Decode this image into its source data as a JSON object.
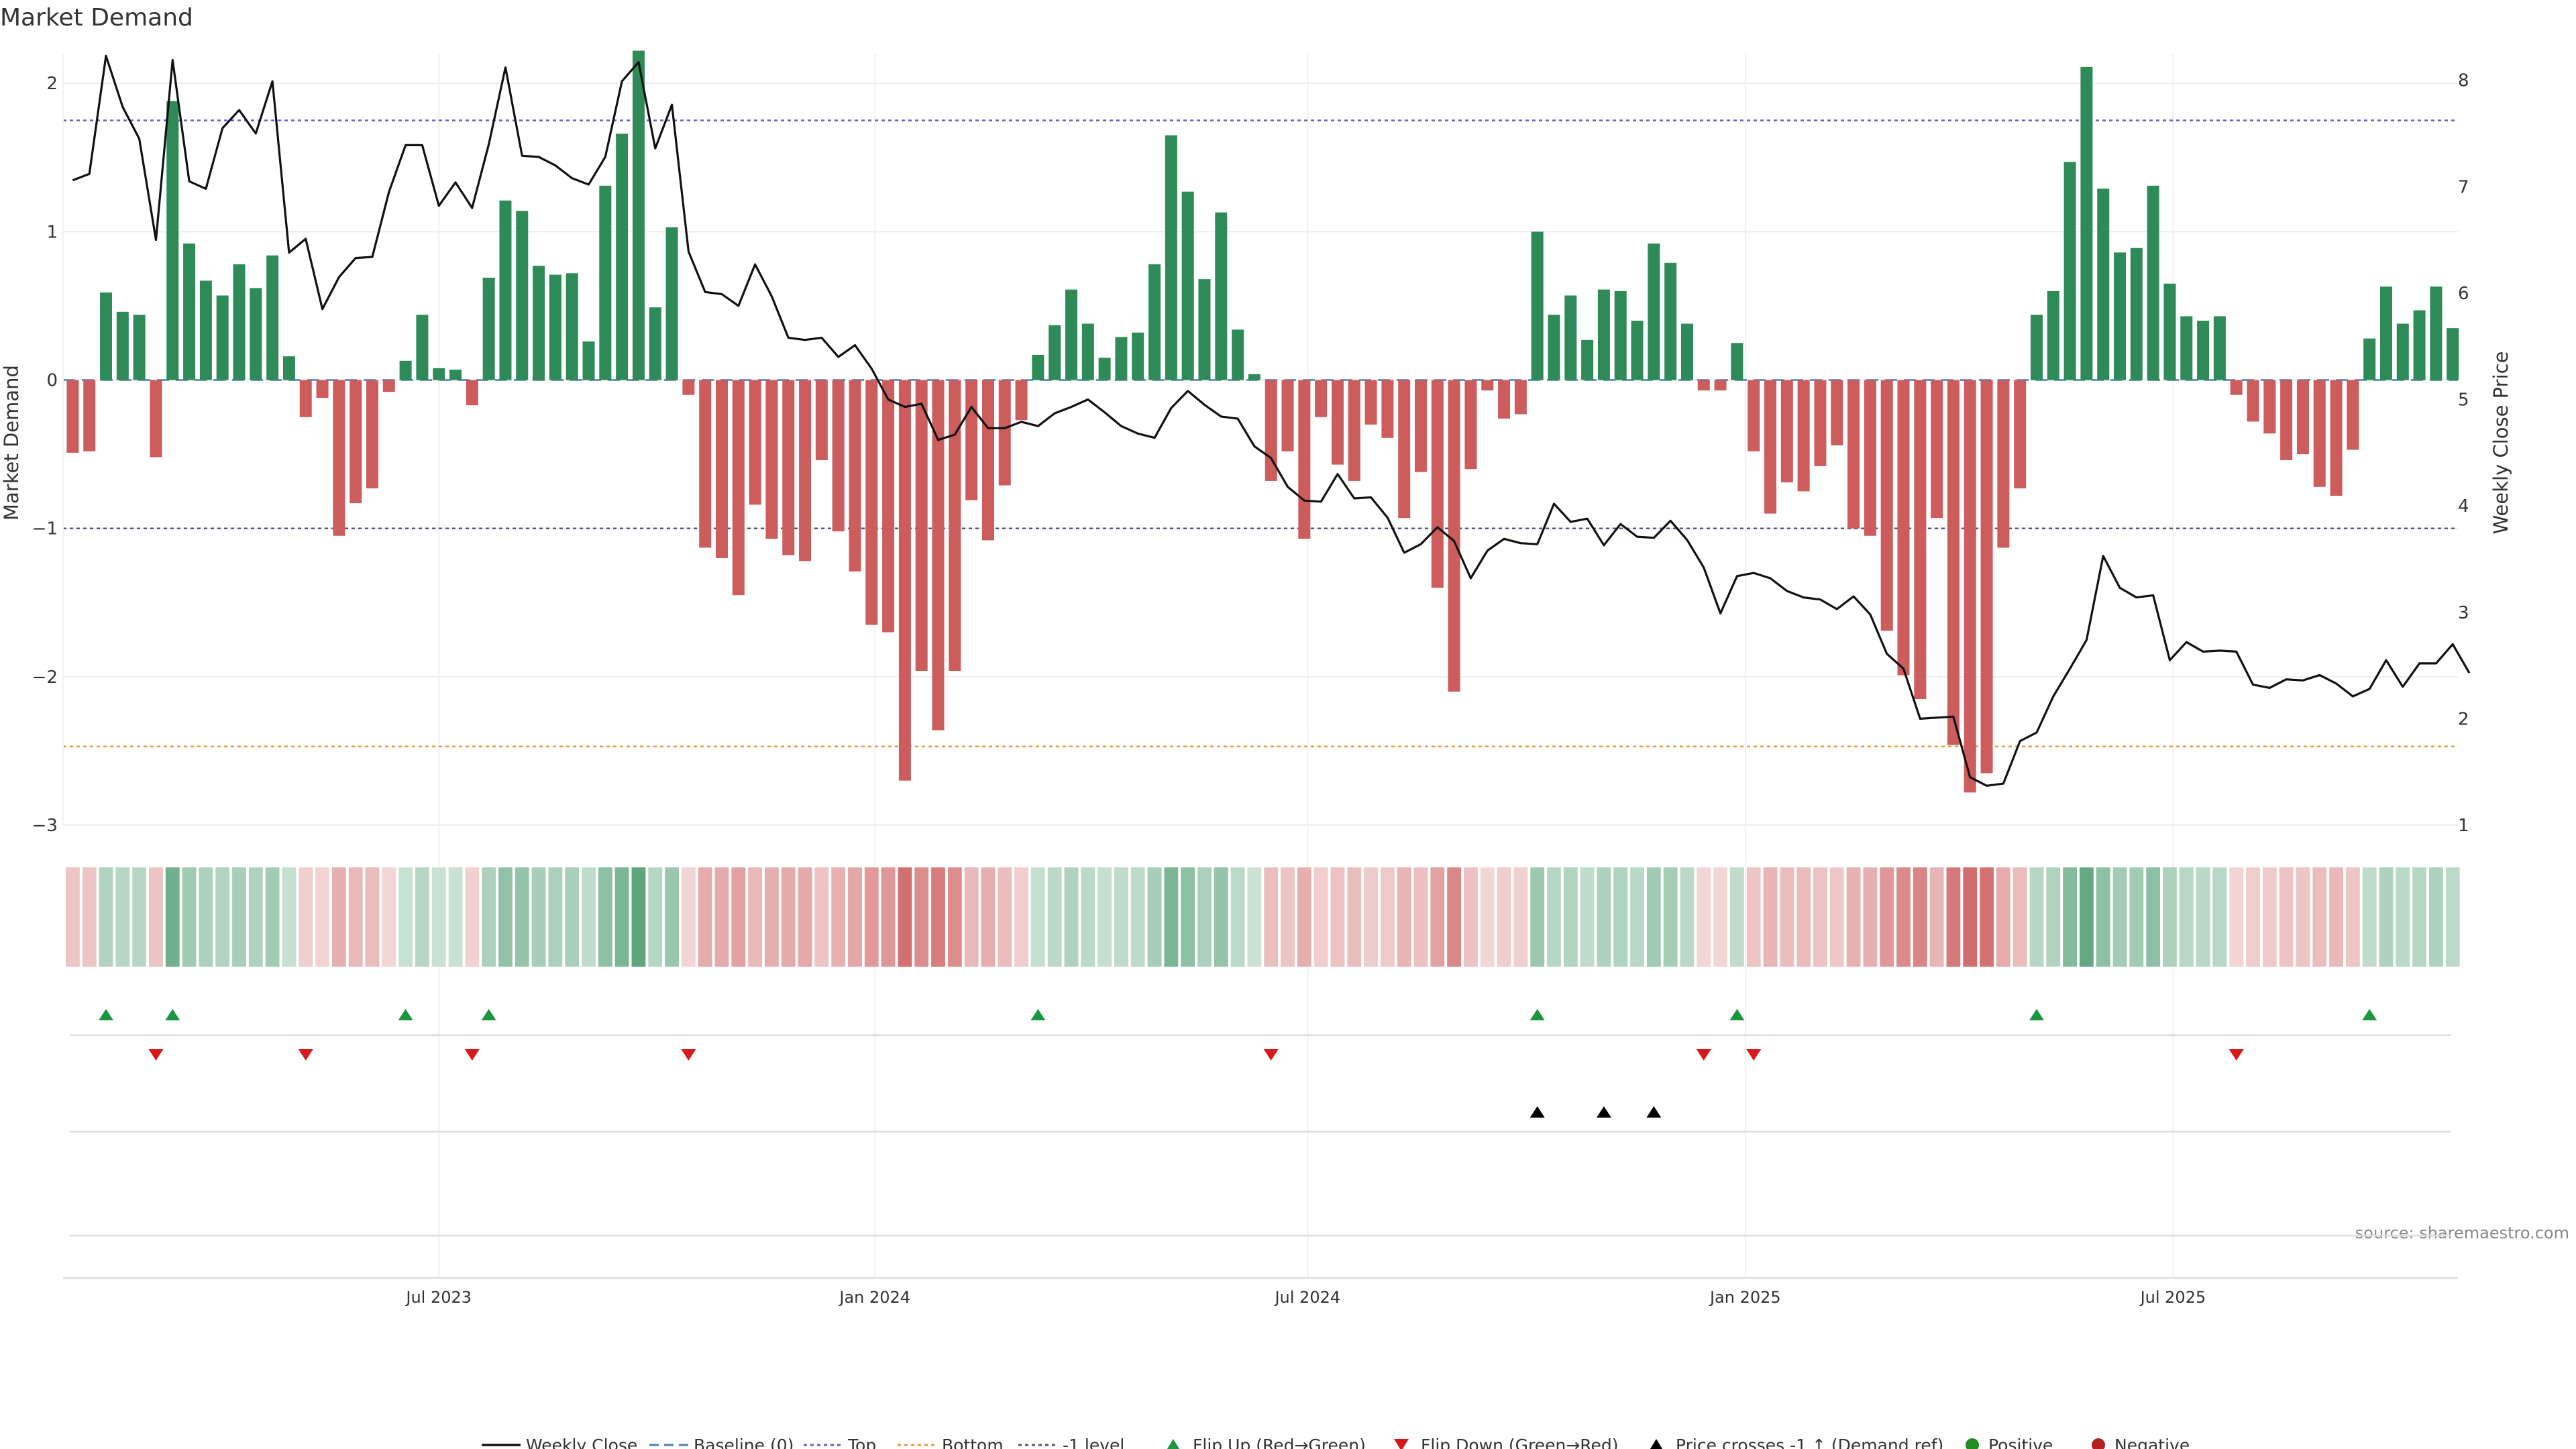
{
  "colors": {
    "positive": "#2e8b57",
    "negative": "#cd5c5c",
    "price_line": "#111111",
    "top_line": "#6a5acd",
    "bottom_line": "#e69a3a",
    "minus1_line": "#555577",
    "flip_up": "#1a9641",
    "flip_down": "#d7191c",
    "cross_marker": "#000000",
    "legend_positive": "#228b22",
    "legend_negative": "#b22222",
    "baseline": "#4a7ebb"
  },
  "chart_data": {
    "type": "bar",
    "title": "Market Demand",
    "source": "source: sharemaestro.com",
    "ylabel_left": "Market Demand",
    "ylabel_right": "Weekly Close Price",
    "ylim_left": [
      -3.0,
      2.2
    ],
    "ylim_right": [
      1.0,
      8.25
    ],
    "yticks_left": [
      {
        "v": 2,
        "label": "2"
      },
      {
        "v": 1,
        "label": "1"
      },
      {
        "v": 0,
        "label": "0"
      },
      {
        "v": -1,
        "label": "−1"
      },
      {
        "v": -2,
        "label": "−2"
      },
      {
        "v": -3,
        "label": "−3"
      }
    ],
    "yticks_right": [
      {
        "v": 8,
        "label": "8"
      },
      {
        "v": 7,
        "label": "7"
      },
      {
        "v": 6,
        "label": "6"
      },
      {
        "v": 5,
        "label": "5"
      },
      {
        "v": 4,
        "label": "4"
      },
      {
        "v": 3,
        "label": "3"
      },
      {
        "v": 2,
        "label": "2"
      },
      {
        "v": 1,
        "label": "1"
      }
    ],
    "xticks": [
      {
        "index": 22,
        "label": "Jul 2023"
      },
      {
        "index": 48.2,
        "label": "Jan 2024"
      },
      {
        "index": 74.2,
        "label": "Jul 2024"
      },
      {
        "index": 100.5,
        "label": "Jan 2025"
      },
      {
        "index": 126.2,
        "label": "Jul 2025"
      }
    ],
    "reference_lines": {
      "top": 1.75,
      "bottom": -2.47,
      "minus1": -1.0
    },
    "demand": [
      -0.49,
      -0.48,
      0.59,
      0.46,
      0.44,
      -0.52,
      1.88,
      0.92,
      0.67,
      0.57,
      0.78,
      0.62,
      0.84,
      0.16,
      -0.25,
      -0.12,
      -1.05,
      -0.83,
      -0.73,
      -0.08,
      0.13,
      0.44,
      0.08,
      0.07,
      -0.17,
      0.69,
      1.21,
      1.14,
      0.77,
      0.71,
      0.72,
      0.26,
      1.31,
      1.66,
      2.22,
      0.49,
      1.03,
      -0.1,
      -1.13,
      -1.2,
      -1.45,
      -0.84,
      -1.07,
      -1.18,
      -1.22,
      -0.54,
      -1.02,
      -1.29,
      -1.65,
      -1.7,
      -2.7,
      -1.96,
      -2.36,
      -1.96,
      -0.81,
      -1.08,
      -0.71,
      -0.27,
      0.17,
      0.37,
      0.61,
      0.38,
      0.15,
      0.29,
      0.32,
      0.78,
      1.65,
      1.27,
      0.68,
      1.13,
      0.34,
      0.04,
      -0.68,
      -0.48,
      -1.07,
      -0.25,
      -0.57,
      -0.68,
      -0.3,
      -0.39,
      -0.93,
      -0.62,
      -1.4,
      -2.1,
      -0.6,
      -0.07,
      -0.26,
      -0.23,
      1.0,
      0.44,
      0.57,
      0.27,
      0.61,
      0.6,
      0.4,
      0.92,
      0.79,
      0.38,
      -0.07,
      -0.07,
      0.25,
      -0.48,
      -0.9,
      -0.69,
      -0.75,
      -0.58,
      -0.44,
      -1.0,
      -1.05,
      -1.69,
      -1.99,
      -2.15,
      -0.93,
      -2.46,
      -2.78,
      -2.65,
      -1.13,
      -0.73,
      0.44,
      0.6,
      1.47,
      2.11,
      1.29,
      0.86,
      0.89,
      1.31,
      0.65,
      0.43,
      0.4,
      0.43,
      -0.1,
      -0.28,
      -0.36,
      -0.54,
      -0.5,
      -0.72,
      -0.78,
      -0.47,
      0.28,
      0.63,
      0.38,
      0.47,
      0.63,
      0.35
    ],
    "price": [
      7.06,
      7.12,
      8.23,
      7.75,
      7.45,
      6.5,
      8.19,
      7.05,
      6.98,
      7.55,
      7.72,
      7.5,
      7.99,
      6.38,
      6.51,
      5.85,
      6.15,
      6.33,
      6.34,
      6.95,
      7.39,
      7.39,
      6.82,
      7.04,
      6.8,
      7.4,
      8.12,
      7.29,
      7.28,
      7.2,
      7.08,
      7.02,
      7.28,
      7.99,
      8.17,
      7.36,
      7.77,
      6.39,
      6.01,
      5.99,
      5.88,
      6.27,
      5.97,
      5.58,
      5.56,
      5.58,
      5.4,
      5.51,
      5.29,
      5.0,
      4.93,
      4.96,
      4.62,
      4.67,
      4.93,
      4.73,
      4.73,
      4.79,
      4.75,
      4.87,
      4.93,
      5.0,
      4.88,
      4.75,
      4.68,
      4.64,
      4.92,
      5.08,
      4.95,
      4.84,
      4.82,
      4.56,
      4.45,
      4.18,
      4.05,
      4.04,
      4.3,
      4.07,
      4.08,
      3.89,
      3.56,
      3.64,
      3.8,
      3.67,
      3.32,
      3.58,
      3.69,
      3.65,
      3.64,
      4.02,
      3.85,
      3.88,
      3.63,
      3.83,
      3.71,
      3.7,
      3.86,
      3.68,
      3.42,
      2.99,
      3.34,
      3.37,
      3.32,
      3.2,
      3.14,
      3.12,
      3.03,
      3.15,
      2.98,
      2.61,
      2.47,
      2.0,
      2.01,
      2.02,
      1.45,
      1.37,
      1.39,
      1.79,
      1.87,
      2.21,
      2.47,
      2.74,
      3.53,
      3.23,
      3.14,
      3.16,
      2.55,
      2.72,
      2.63,
      2.64,
      2.63,
      2.32,
      2.29,
      2.37,
      2.36,
      2.41,
      2.33,
      2.21,
      2.28,
      2.55,
      2.3,
      2.52,
      2.52,
      2.7,
      2.43
    ],
    "flip_up_index": [
      2,
      6,
      20,
      25,
      58,
      88,
      100,
      118,
      138
    ],
    "flip_down_index": [
      5,
      14,
      24,
      37,
      72,
      98,
      101,
      130
    ],
    "price_cross_index": [
      88,
      92,
      95
    ],
    "legend": [
      "Weekly Close",
      "Baseline (0)",
      "Top",
      "Bottom",
      "-1 level",
      "Flip Up (Red→Green)",
      "Flip Down (Green→Red)",
      "Price crosses -1 ↑ (Demand ref)",
      "Positive",
      "Negative"
    ]
  }
}
